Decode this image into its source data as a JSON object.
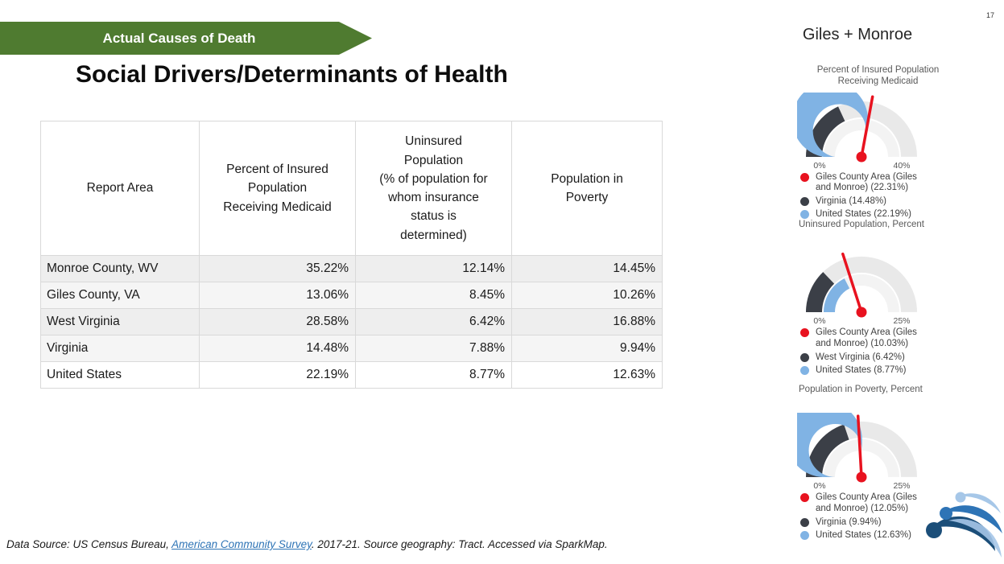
{
  "page_number": "17",
  "banner": {
    "label": "Actual Causes of Death",
    "color": "#4f7b30"
  },
  "header_right": "Giles + Monroe",
  "title": "Social Drivers/Determinants of Health",
  "table": {
    "columns": [
      "Report Area",
      "Percent of Insured\nPopulation\nReceiving Medicaid",
      "Uninsured\nPopulation\n(% of population for\nwhom insurance\nstatus is\ndetermined)",
      "Population in\nPoverty"
    ],
    "rows": [
      {
        "area": "Monroe County, WV",
        "values": [
          "35.22%",
          "12.14%",
          "14.45%"
        ]
      },
      {
        "area": "Giles County, VA",
        "values": [
          "13.06%",
          "8.45%",
          "10.26%"
        ]
      },
      {
        "area": "West Virginia",
        "values": [
          "28.58%",
          "6.42%",
          "16.88%"
        ]
      },
      {
        "area": "Virginia",
        "values": [
          "14.48%",
          "7.88%",
          "9.94%"
        ]
      },
      {
        "area": "United States",
        "values": [
          "22.19%",
          "8.77%",
          "12.63%"
        ]
      }
    ]
  },
  "chart_data": [
    {
      "type": "gauge",
      "title": "Percent of Insured Population\nReceiving Medicaid",
      "axis": {
        "min": 0,
        "max": 40,
        "min_label": "0%",
        "max_label": "40%"
      },
      "needle": {
        "label": "Giles County Area (Giles\nand Monroe) (22.31%)",
        "value": 22.31,
        "color": "#e8121f"
      },
      "outer_arc": {
        "label": "Virginia (14.48%)",
        "value": 14.48,
        "color": "#3b3f47"
      },
      "inner_arc": {
        "label": "United States (22.19%)",
        "value": 22.19,
        "color": "#80b3e4"
      }
    },
    {
      "type": "gauge",
      "title": "Uninsured Population, Percent",
      "axis": {
        "min": 0,
        "max": 25,
        "min_label": "0%",
        "max_label": "25%"
      },
      "needle": {
        "label": "Giles County Area (Giles\nand Monroe) (10.03%)",
        "value": 10.03,
        "color": "#e8121f"
      },
      "outer_arc": {
        "label": "West Virginia (6.42%)",
        "value": 6.42,
        "color": "#3b3f47"
      },
      "inner_arc": {
        "label": "United States (8.77%)",
        "value": 8.77,
        "color": "#80b3e4"
      }
    },
    {
      "type": "gauge",
      "title": "Population in Poverty, Percent",
      "axis": {
        "min": 0,
        "max": 25,
        "min_label": "0%",
        "max_label": "25%"
      },
      "needle": {
        "label": "Giles County Area (Giles\nand Monroe) (12.05%)",
        "value": 12.05,
        "color": "#e8121f"
      },
      "outer_arc": {
        "label": "Virginia (9.94%)",
        "value": 9.94,
        "color": "#3b3f47"
      },
      "inner_arc": {
        "label": "United States (12.63%)",
        "value": 12.63,
        "color": "#80b3e4"
      }
    }
  ],
  "gauge_style": {
    "track_outer": "#e9e9e9",
    "track_inner": "#f3f3f3",
    "label_color": "#555555"
  },
  "footer": {
    "prefix": "Data Source: US Census Bureau, ",
    "link_label": "American Community Survey",
    "suffix": ". 2017-21. Source geography: Tract. Accessed via SparkMap."
  },
  "logo": {
    "name": "sparkmap-logo",
    "colors": [
      "#a6c7e8",
      "#2e74b6",
      "#1b4e79"
    ]
  }
}
